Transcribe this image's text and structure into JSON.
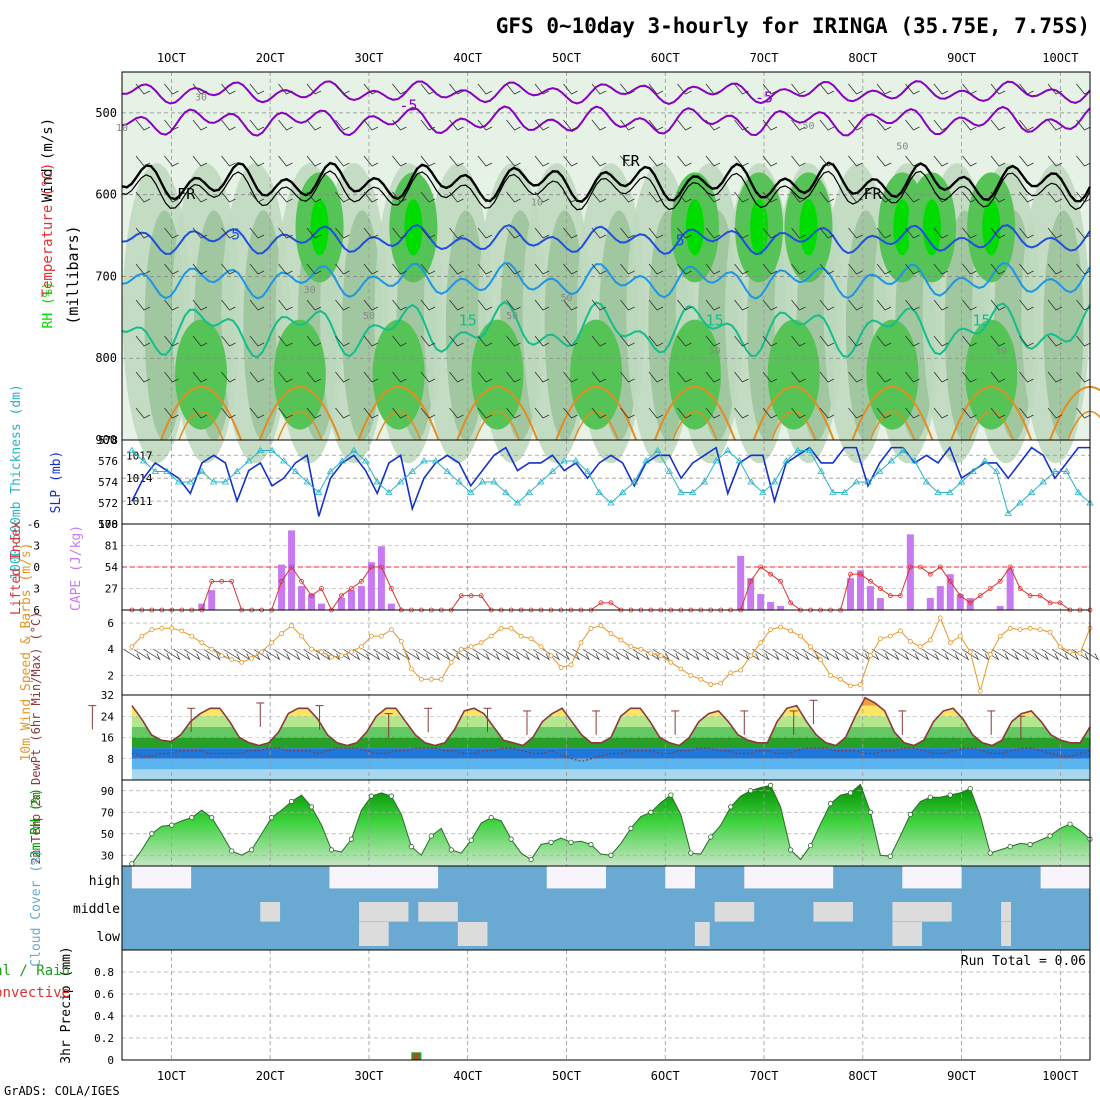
{
  "title": "GFS 0~10day 3-hourly for IRINGA (35.75E, 7.75S)",
  "credit": "GrADS: COLA/IGES",
  "x_ticks": [
    "1OCT",
    "2OCT",
    "3OCT",
    "4OCT",
    "5OCT",
    "6OCT",
    "7OCT",
    "8OCT",
    "9OCT",
    "10OCT"
  ],
  "colors": {
    "rh_light": "#e5f2e5",
    "rh_mid": "#bfd9bf",
    "rh_dark": "#9cc49c",
    "rh_green": "#55c355",
    "rh_bright": "#00dc00",
    "t_neg": "#8800c0",
    "t_fr": "#000000",
    "t_5": "#1e50dc",
    "t_10": "#1e96e6",
    "t_15": "#14be8c",
    "t_20": "#e68c1e",
    "slp": "#1432c8",
    "thick": "#28b4c8",
    "li": "#e03030",
    "cape": "#c87af0",
    "wind": "#e69628",
    "temp_line": "#8b3a3a",
    "cloud": "#6aaad2",
    "cloud_bg": "#f8f4fb",
    "precip_total": "#1ea01e",
    "precip_conv": "#dc3232"
  },
  "chart_data": [
    {
      "type": "heatmap",
      "panel": "upper-air",
      "ylabel_parts": [
        "Wind (m/s)",
        "Temperature (°C)",
        "RH (%)",
        "(millibars)"
      ],
      "y_ticks": [
        500,
        600,
        700,
        800,
        900
      ],
      "ylim": [
        900,
        450
      ],
      "rh_levels": [
        10,
        30,
        50,
        70,
        90
      ],
      "temp_labels": [
        {
          "text": "-5",
          "day": 3.4,
          "level": 497
        },
        {
          "text": "-5",
          "day": 7.0,
          "level": 487
        },
        {
          "text": "FR",
          "day": 1.15,
          "level": 605
        },
        {
          "text": "FR",
          "day": 5.65,
          "level": 565
        },
        {
          "text": "FR",
          "day": 8.1,
          "level": 605
        },
        {
          "text": "5",
          "day": 1.65,
          "level": 655
        },
        {
          "text": "5",
          "day": 6.15,
          "level": 662
        },
        {
          "text": "15",
          "day": 4.0,
          "level": 760
        },
        {
          "text": "15",
          "day": 6.5,
          "level": 760
        },
        {
          "text": "15",
          "day": 9.2,
          "level": 760
        }
      ],
      "rh_labels": [
        {
          "text": "30",
          "day": 1.3,
          "level": 485
        },
        {
          "text": "10",
          "day": 0.5,
          "level": 522
        },
        {
          "text": "10",
          "day": 4.7,
          "level": 613
        },
        {
          "text": "30",
          "day": 2.4,
          "level": 720
        },
        {
          "text": "50",
          "day": 3.0,
          "level": 752
        },
        {
          "text": "50",
          "day": 4.45,
          "level": 752
        },
        {
          "text": "50",
          "day": 7.45,
          "level": 520
        },
        {
          "text": "50",
          "day": 8.4,
          "level": 545
        },
        {
          "text": "50",
          "day": 5.0,
          "level": 730
        },
        {
          "text": "50",
          "day": 6.5,
          "level": 795
        },
        {
          "text": "50",
          "day": 9.4,
          "level": 795
        }
      ]
    },
    {
      "type": "line",
      "panel": "slp-thickness",
      "ylabel_left": "1000-500mb Thickness (dm)",
      "ylabel_right": "SLP (mb)",
      "thickness_ticks": [
        570,
        572,
        574,
        576,
        578
      ],
      "slp_ticks": [
        1011,
        1014,
        1017
      ],
      "slp": [
        1011,
        1014,
        1016,
        1015,
        1014,
        1012,
        1016,
        1017,
        1016,
        1011,
        1015,
        1016,
        1013,
        1014,
        1016,
        1017,
        1009,
        1014,
        1016,
        1017,
        1015,
        1012,
        1016,
        1017,
        1010,
        1014,
        1016,
        1017,
        1016,
        1013,
        1015,
        1017,
        1018,
        1015,
        1016,
        1016,
        1017,
        1015,
        1016,
        1014,
        1016,
        1017,
        1016,
        1013,
        1016,
        1017,
        1017,
        1014,
        1016,
        1017,
        1018,
        1012,
        1016,
        1017,
        1017,
        1011,
        1016,
        1017,
        1018,
        1016,
        1016,
        1018,
        1018,
        1013,
        1016,
        1018,
        1018,
        1016,
        1017,
        1016,
        1018,
        1014,
        1015,
        1016,
        1016,
        1014,
        1016,
        1018,
        1017,
        1014,
        1016,
        1018,
        1018
      ],
      "thickness": [
        577,
        576,
        575,
        575,
        574,
        574,
        575,
        574,
        574,
        575,
        576,
        577,
        577,
        576,
        575,
        574,
        573,
        575,
        576,
        577,
        576,
        574,
        573,
        574,
        575,
        576,
        576,
        575,
        574,
        573,
        574,
        574,
        573,
        572,
        573,
        574,
        575,
        576,
        576,
        575,
        573,
        572,
        573,
        574,
        576,
        577,
        575,
        573,
        573,
        574,
        576,
        577,
        576,
        574,
        573,
        574,
        576,
        577,
        577,
        575,
        573,
        573,
        574,
        574,
        575,
        576,
        577,
        576,
        574,
        573,
        573,
        574,
        575,
        576,
        575,
        571,
        572,
        573,
        574,
        575,
        575,
        573,
        572
      ]
    },
    {
      "type": "bar",
      "panel": "cape-li",
      "ylabel_left": "Lifted Index",
      "ylabel_right": "CAPE (J/kg)",
      "li_ticks": [
        6,
        3,
        0,
        -3,
        -6
      ],
      "cape_ticks": [
        27,
        54,
        81,
        108
      ],
      "cape": [
        0,
        0,
        0,
        0,
        0,
        0,
        0,
        8,
        25,
        0,
        0,
        0,
        0,
        0,
        0,
        57,
        100,
        30,
        20,
        8,
        0,
        15,
        25,
        30,
        60,
        80,
        8,
        0,
        0,
        0,
        0,
        0,
        0,
        0,
        0,
        0,
        0,
        0,
        0,
        0,
        0,
        0,
        0,
        0,
        0,
        0,
        0,
        0,
        0,
        0,
        0,
        0,
        0,
        0,
        0,
        0,
        0,
        0,
        0,
        0,
        0,
        68,
        40,
        20,
        10,
        5,
        0,
        0,
        0,
        0,
        0,
        0,
        40,
        50,
        30,
        15,
        0,
        0,
        95,
        0,
        15,
        30,
        45,
        20,
        15,
        0,
        0,
        5,
        52,
        0,
        0,
        0,
        0,
        0,
        0,
        0,
        0
      ],
      "li": [
        6,
        6,
        6,
        6,
        6,
        6,
        6,
        6,
        2,
        2,
        2,
        6,
        6,
        6,
        6,
        2,
        0,
        2,
        4,
        3,
        6,
        4,
        3,
        2,
        0,
        0,
        3,
        6,
        6,
        6,
        6,
        6,
        6,
        4,
        4,
        4,
        6,
        6,
        6,
        6,
        6,
        6,
        6,
        6,
        6,
        6,
        6,
        5,
        5,
        6,
        6,
        6,
        6,
        6,
        6,
        6,
        6,
        6,
        6,
        6,
        6,
        6,
        2,
        0,
        1,
        2,
        5,
        6,
        6,
        6,
        6,
        6,
        1,
        1,
        2,
        3,
        4,
        4,
        0,
        0,
        1,
        0,
        2,
        4,
        5,
        4,
        3,
        2,
        0,
        3,
        4,
        4,
        5,
        5,
        6,
        6,
        6
      ]
    },
    {
      "type": "line",
      "panel": "wind",
      "ylabel": "10m Wind Speed & Barbs (m/s)",
      "y_ticks": [
        2,
        4,
        6
      ],
      "speed": [
        4.2,
        5.0,
        5.5,
        5.6,
        5.6,
        5.4,
        5.0,
        4.5,
        4.0,
        3.5,
        3.2,
        3.0,
        3.3,
        3.8,
        4.5,
        5.2,
        5.8,
        5.0,
        4.0,
        3.8,
        3.4,
        3.5,
        3.8,
        4.2,
        5.0,
        5.0,
        5.5,
        4.6,
        2.5,
        1.7,
        1.7,
        1.7,
        3.0,
        4.0,
        4.2,
        4.5,
        5.0,
        5.6,
        5.6,
        5.0,
        4.8,
        4.2,
        3.5,
        2.6,
        2.8,
        4.5,
        5.6,
        5.8,
        5.2,
        4.7,
        4.2,
        4.0,
        3.7,
        3.5,
        3.0,
        2.5,
        2.0,
        1.7,
        1.3,
        1.4,
        2.2,
        2.4,
        3.5,
        4.5,
        5.5,
        5.7,
        5.4,
        5.0,
        4.2,
        3.2,
        2.0,
        1.7,
        1.2,
        1.3,
        3.5,
        4.8,
        5.0,
        5.4,
        4.6,
        4.2,
        4.7,
        6.4,
        4.5,
        5.0,
        3.8,
        0.8,
        3.6,
        5.0,
        5.6,
        5.5,
        5.6,
        5.5,
        5.3,
        4.2,
        3.8,
        3.7,
        5.6
      ]
    },
    {
      "type": "area",
      "panel": "temperature",
      "ylabel": "2m Temp 2m DewPt (6hr Min/Max) (°C)",
      "y_ticks": [
        8,
        16,
        24,
        32
      ],
      "temp": [
        28,
        23,
        17,
        15,
        14.5,
        17,
        22,
        25,
        27,
        27,
        22,
        16,
        14,
        13,
        14,
        18,
        25,
        27,
        27,
        23,
        17,
        14,
        13,
        14,
        18,
        24,
        27,
        27,
        22,
        17,
        14,
        13,
        14,
        19,
        26,
        27,
        25,
        20,
        15,
        14,
        13,
        16,
        22,
        25,
        27,
        22,
        17,
        14,
        14,
        16,
        24,
        27,
        27,
        22,
        16,
        14,
        13,
        16,
        22,
        25,
        26,
        22,
        17,
        15,
        14,
        14,
        22,
        27,
        28,
        22,
        17,
        14,
        13,
        16,
        24,
        31,
        29,
        26,
        18,
        14,
        13,
        15,
        22,
        26,
        27,
        23,
        17,
        14,
        13,
        15,
        22,
        25,
        26,
        22,
        17,
        15,
        14,
        14,
        20
      ],
      "dewpoint": [
        10,
        9,
        9,
        10,
        10,
        11,
        11,
        11,
        10,
        10,
        10,
        10,
        11,
        11,
        12,
        12,
        11,
        11,
        11,
        10,
        11,
        12,
        12,
        12,
        11,
        10,
        10,
        11,
        11,
        12,
        12,
        12,
        11,
        11,
        10,
        10,
        11,
        11,
        12,
        12,
        11,
        10,
        10,
        11,
        9,
        8,
        7,
        8,
        9,
        10,
        10,
        11,
        11,
        11,
        10,
        10,
        11,
        11,
        12,
        12,
        11,
        11,
        10,
        10,
        11,
        11,
        10,
        10,
        11,
        12,
        12,
        12,
        11,
        11,
        11,
        10,
        10,
        11,
        11,
        12,
        12,
        11,
        10,
        10,
        11,
        12,
        12,
        11,
        10,
        10,
        11,
        12,
        12,
        11,
        10,
        9,
        9,
        10,
        11
      ],
      "temp_max_6hr": [
        [
          0.2,
          28
        ],
        [
          1.2,
          27
        ],
        [
          1.9,
          29
        ],
        [
          2.5,
          28
        ],
        [
          3.2,
          25
        ],
        [
          3.6,
          27
        ],
        [
          4.2,
          27
        ],
        [
          4.6,
          26
        ],
        [
          5.3,
          26
        ],
        [
          6.1,
          26
        ],
        [
          6.8,
          26
        ],
        [
          7.3,
          26
        ],
        [
          7.5,
          30
        ],
        [
          8.4,
          26
        ],
        [
          9.3,
          26
        ],
        [
          9.6,
          24
        ]
      ]
    },
    {
      "type": "area",
      "panel": "rh2m",
      "ylabel": "2m RH (%)",
      "y_ticks": [
        30,
        50,
        70,
        90
      ],
      "rh": [
        22,
        35,
        50,
        57,
        58,
        62,
        65,
        72,
        65,
        50,
        34,
        30,
        35,
        50,
        65,
        72,
        80,
        86,
        75,
        58,
        35,
        33,
        45,
        72,
        85,
        88,
        85,
        68,
        38,
        30,
        48,
        55,
        35,
        32,
        44,
        60,
        65,
        62,
        45,
        32,
        26,
        40,
        42,
        46,
        42,
        43,
        40,
        31,
        30,
        41,
        55,
        66,
        70,
        79,
        86,
        68,
        32,
        31,
        47,
        58,
        75,
        85,
        90,
        93,
        95,
        75,
        35,
        26,
        39,
        59,
        78,
        86,
        88,
        96,
        70,
        30,
        29,
        48,
        68,
        80,
        84,
        84,
        86,
        88,
        92,
        67,
        32,
        35,
        38,
        41,
        40,
        44,
        48,
        55,
        59,
        53,
        45
      ]
    },
    {
      "type": "heatmap",
      "panel": "cloud",
      "ylabel": "Cloud Cover (%)",
      "rows": [
        "high",
        "middle",
        "low"
      ],
      "high": [
        85,
        0,
        0,
        0,
        0,
        0,
        0,
        0,
        0,
        0,
        0,
        0,
        0,
        0,
        0,
        0,
        10,
        10,
        10,
        10,
        10,
        10,
        10,
        10,
        10,
        10,
        10,
        10,
        10,
        10,
        10,
        10,
        10,
        10,
        10,
        10,
        10,
        10,
        10,
        10,
        10,
        10,
        10,
        10,
        10,
        10,
        10,
        10,
        10,
        10,
        10,
        10,
        10,
        10,
        10,
        10,
        10,
        10,
        10,
        10,
        10,
        10,
        10,
        10,
        10,
        10,
        10,
        10,
        10,
        10,
        10,
        10,
        10,
        10,
        10,
        10,
        10,
        10,
        10,
        10,
        10,
        10,
        10,
        10,
        10,
        10,
        10,
        10,
        10,
        10,
        10,
        10,
        10,
        10,
        10,
        10,
        10
      ],
      "middle": [
        0,
        0,
        0,
        0,
        0,
        0,
        0,
        0,
        0,
        0,
        0,
        0,
        0,
        0,
        0,
        0,
        0,
        0,
        0,
        0,
        0,
        0,
        0,
        0,
        0,
        0,
        0,
        0,
        0,
        0,
        0,
        0,
        0,
        0,
        0,
        0,
        0,
        0,
        0,
        0,
        0,
        0,
        0,
        0,
        0,
        0,
        0,
        0,
        0,
        0,
        0,
        0,
        0,
        0,
        0,
        0,
        0,
        0,
        0,
        0,
        0,
        0,
        0,
        0,
        0,
        0,
        0,
        0,
        0,
        0,
        0,
        0,
        0,
        0,
        0,
        0,
        0,
        0,
        0,
        0,
        0,
        0,
        0,
        0,
        0,
        0,
        0,
        0,
        0,
        0,
        0,
        0,
        0,
        0,
        0,
        0,
        0
      ],
      "low": [
        0,
        0,
        0,
        0,
        0,
        0,
        0,
        0,
        0,
        0,
        0,
        0,
        0,
        0,
        0,
        0,
        0,
        0,
        0,
        0,
        0,
        0,
        0,
        0,
        0,
        0,
        0,
        0,
        0,
        0,
        0,
        0,
        0,
        0,
        0,
        0,
        0,
        0,
        0,
        0,
        0,
        0,
        0,
        0,
        0,
        0,
        0,
        0,
        0,
        0,
        0,
        0,
        0,
        0,
        0,
        0,
        0,
        0,
        0,
        0,
        0,
        0,
        0,
        0,
        0,
        0,
        0,
        0,
        0,
        0,
        0,
        0,
        0,
        0,
        0,
        0,
        0,
        0,
        0,
        0,
        0,
        0,
        0,
        0,
        0,
        0,
        0,
        0,
        0,
        0,
        0,
        0,
        0,
        0,
        0,
        0,
        0
      ]
    },
    {
      "type": "bar",
      "panel": "precip",
      "ylabel": "3hr Precip (mm)",
      "ylabel_side": [
        "Total / Rain",
        "Convective"
      ],
      "y_ticks": [
        0,
        0.2,
        0.4,
        0.6,
        0.8
      ],
      "ylim": [
        0,
        1
      ],
      "run_total_label": "Run Total = 0.06",
      "total": [
        {
          "day": 3.48,
          "mm": 0.06
        }
      ],
      "convective": [
        {
          "day": 3.48,
          "mm": 0.06
        }
      ]
    }
  ]
}
